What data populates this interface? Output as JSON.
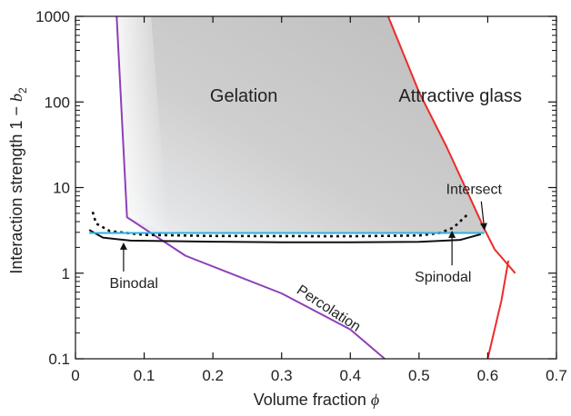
{
  "chart_data": {
    "type": "line",
    "xlabel": "Volume fraction",
    "xlabel_symbol": "ϕ",
    "ylabel": "Interaction strength 1 − ",
    "ylabel_symbol": "b",
    "ylabel_sub": "2",
    "xlim": [
      0,
      0.7
    ],
    "ylim": [
      0.1,
      1000
    ],
    "yscale": "log",
    "x_ticks": [
      0,
      0.1,
      0.2,
      0.3,
      0.4,
      0.5,
      0.6,
      0.7
    ],
    "x_tick_labels": [
      "0",
      "0.1",
      "0.2",
      "0.3",
      "0.4",
      "0.5",
      "0.6",
      "0.7"
    ],
    "y_ticks": [
      0.1,
      1,
      10,
      100,
      1000
    ],
    "y_tick_labels": [
      "0.1",
      "1",
      "10",
      "100",
      "1000"
    ],
    "grid": false,
    "regions": [
      {
        "label": "Gelation",
        "x": 0.245,
        "y": 120
      },
      {
        "label": "Attractive glass",
        "x": 0.56,
        "y": 120
      }
    ],
    "series": [
      {
        "color": "#8e3fb8",
        "points": [
          [
            0.06,
            1000
          ],
          [
            0.075,
            4.5
          ],
          [
            0.16,
            1.6
          ],
          [
            0.3,
            0.58
          ],
          [
            0.4,
            0.22
          ],
          [
            0.45,
            0.1
          ]
        ]
      },
      {
        "color": "#ee2a2a",
        "points": [
          [
            0.455,
            1000
          ],
          [
            0.5,
            130
          ],
          [
            0.54,
            30
          ],
          [
            0.57,
            9
          ],
          [
            0.595,
            3.3
          ],
          [
            0.61,
            1.9
          ],
          [
            0.64,
            1.0
          ]
        ]
      },
      {
        "color": "#ee2a2a",
        "points": [
          [
            0.6,
            0.1
          ],
          [
            0.62,
            0.48
          ],
          [
            0.63,
            1.4
          ]
        ]
      },
      {
        "color": "#111111",
        "points": [
          [
            0.02,
            3.2
          ],
          [
            0.04,
            2.6
          ],
          [
            0.08,
            2.4
          ],
          [
            0.2,
            2.33
          ],
          [
            0.3,
            2.3
          ],
          [
            0.4,
            2.3
          ],
          [
            0.5,
            2.32
          ],
          [
            0.56,
            2.45
          ],
          [
            0.59,
            2.85
          ]
        ]
      },
      {
        "color": "#111111",
        "dashed": true,
        "points": [
          [
            0.025,
            5.2
          ],
          [
            0.03,
            3.8
          ],
          [
            0.05,
            3.1
          ],
          [
            0.1,
            2.8
          ],
          [
            0.2,
            2.72
          ],
          [
            0.4,
            2.7
          ],
          [
            0.5,
            2.75
          ],
          [
            0.53,
            2.95
          ],
          [
            0.55,
            3.4
          ],
          [
            0.57,
            4.8
          ]
        ]
      },
      {
        "color": "#2ab3dd",
        "points": [
          [
            0.02,
            2.95
          ],
          [
            0.595,
            2.95
          ]
        ]
      }
    ],
    "annotations": [
      {
        "label": "Binodal",
        "x": 0.085,
        "y": 0.78,
        "arrow_to": [
          0.07,
          2.4
        ]
      },
      {
        "label": "Spinodal",
        "x": 0.535,
        "y": 0.92,
        "arrow_to": [
          0.548,
          3.3
        ]
      },
      {
        "label": "Intersect",
        "x": 0.58,
        "y": 9.7,
        "arrow_to": [
          0.595,
          3.0
        ]
      },
      {
        "label": "Percolation",
        "x": 0.365,
        "y": 0.35,
        "rotate": 33
      }
    ]
  }
}
